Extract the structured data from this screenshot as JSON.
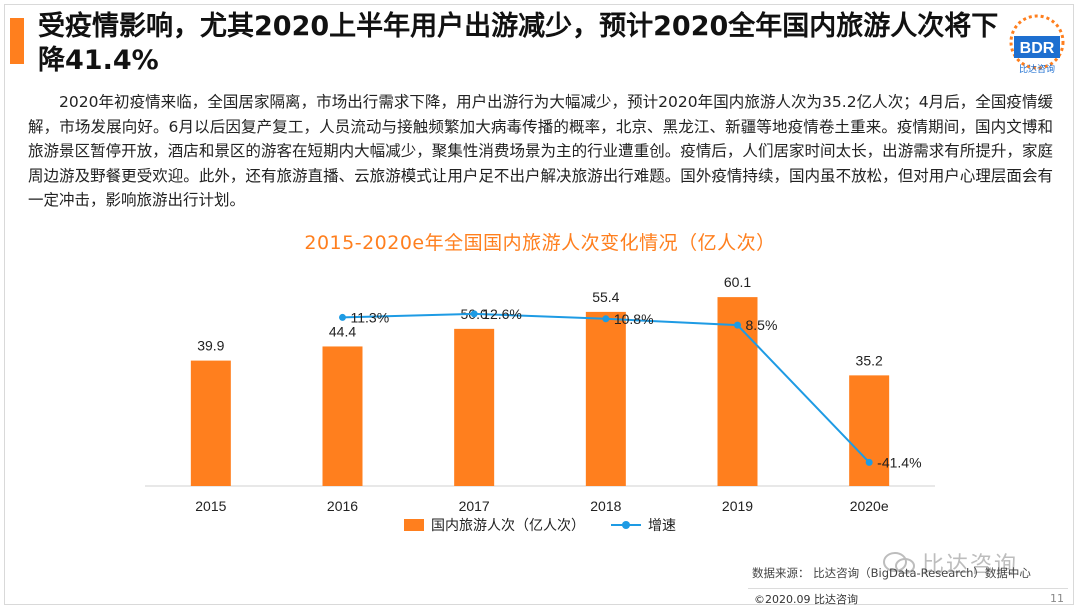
{
  "title": "受疫情影响，尤其2020上半年用户出游减少，预计2020全年国内旅游人次将下降41.4%",
  "logo": {
    "text": "BDR",
    "subtext": "比达咨询"
  },
  "body_text": "2020年初疫情来临，全国居家隔离，市场出行需求下降，用户出游行为大幅减少，预计2020年国内旅游人次为35.2亿人次；4月后，全国疫情缓解，市场发展向好。6月以后因复产复工，人员流动与接触频繁加大病毒传播的概率，北京、黑龙江、新疆等地疫情卷土重来。疫情期间，国内文博和旅游景区暂停开放，酒店和景区的游客在短期内大幅减少，聚集性消费场景为主的行业遭重创。疫情后，人们居家时间太长，出游需求有所提升，家庭周边游及野餐更受欢迎。此外，还有旅游直播、云旅游模式让用户足不出户解决旅游出行难题。国外疫情持续，国内虽不放松，但对用户心理层面会有一定冲击，影响旅游出行计划。",
  "chart_data": {
    "type": "bar",
    "title": "2015-2020e年全国国内旅游人次变化情况（亿人次）",
    "categories": [
      "2015",
      "2016",
      "2017",
      "2018",
      "2019",
      "2020e"
    ],
    "series": [
      {
        "name": "国内旅游人次（亿人次）",
        "type": "bar",
        "color": "#ff7f1e",
        "values": [
          39.9,
          44.4,
          50.0,
          55.4,
          60.1,
          35.2
        ],
        "labels": [
          "39.9",
          "44.4",
          "50.0",
          "55.4",
          "60.1",
          "35.2"
        ]
      },
      {
        "name": "增速",
        "type": "line",
        "color": "#1e9be4",
        "values": [
          null,
          11.3,
          12.6,
          10.8,
          8.5,
          -41.4
        ],
        "labels": [
          "",
          "11.3%",
          "12.6%",
          "10.8%",
          "8.5%",
          "-41.4%"
        ]
      }
    ],
    "ylim_bar": [
      0,
      70
    ],
    "ylim_line": [
      -50,
      30
    ],
    "grid": false,
    "legend_position": "bottom"
  },
  "source": "数据来源：  比达咨询（BigData-Research）数据中心",
  "watermark": "比达咨询",
  "copyright": "©2020.09 比达咨询",
  "page_number": "11"
}
